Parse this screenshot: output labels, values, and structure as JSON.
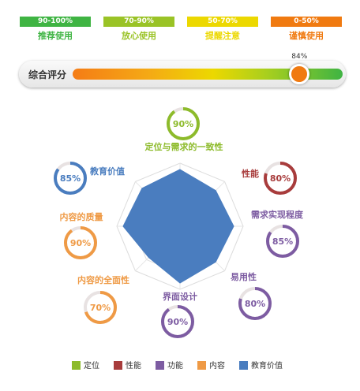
{
  "levels": [
    {
      "range": "90-100%",
      "label": "推荐使用",
      "color": "#3fb443"
    },
    {
      "range": "70-90%",
      "label": "放心使用",
      "color": "#9ac326"
    },
    {
      "range": "50-70%",
      "label": "提醒注意",
      "color": "#ecd800"
    },
    {
      "range": "0-50%",
      "label": "谨慎使用",
      "color": "#f07a10"
    }
  ],
  "score": {
    "title": "综合评分",
    "value": 84,
    "label": "84%"
  },
  "chart_data": {
    "type": "radar",
    "range": [
      0,
      100
    ],
    "grid": true,
    "series": [
      {
        "values": [
          90,
          80,
          85,
          80,
          90,
          70,
          90,
          85
        ],
        "color": "#4a7dbf"
      }
    ],
    "dimensions": [
      {
        "name": "定位与需求的一致性",
        "value": 90,
        "label": "90%",
        "category": "定位"
      },
      {
        "name": "性能",
        "value": 80,
        "label": "80%",
        "category": "性能"
      },
      {
        "name": "需求实现程度",
        "value": 85,
        "label": "85%",
        "category": "功能"
      },
      {
        "name": "易用性",
        "value": 80,
        "label": "80%",
        "category": "功能"
      },
      {
        "name": "界面设计",
        "value": 90,
        "label": "90%",
        "category": "功能"
      },
      {
        "name": "内容的全面性",
        "value": 70,
        "label": "70%",
        "category": "内容"
      },
      {
        "name": "内容的质量",
        "value": 90,
        "label": "90%",
        "category": "内容"
      },
      {
        "name": "教育价值",
        "value": 85,
        "label": "85%",
        "category": "教育价值"
      }
    ],
    "legend_position": "bottom",
    "legend": [
      {
        "name": "定位",
        "color": "#8dbb2b"
      },
      {
        "name": "性能",
        "color": "#a83c3c"
      },
      {
        "name": "功能",
        "color": "#7d5ca2"
      },
      {
        "name": "内容",
        "color": "#ef9a45"
      },
      {
        "name": "教育价值",
        "color": "#4a7dbf"
      }
    ]
  }
}
